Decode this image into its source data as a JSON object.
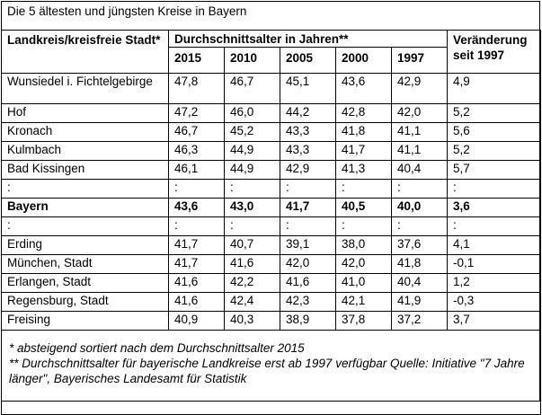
{
  "title": "Die 5 ältesten und jüngsten Kreise in Bayern",
  "header": {
    "landkreis": "Landkreis/kreisfreie Stadt*",
    "group": "Durchschnittsalter in Jahren**",
    "years": [
      "2015",
      "2010",
      "2005",
      "2000",
      "1997"
    ],
    "change": "Veränderung seit 1997"
  },
  "rows": [
    {
      "name": "Wunsiedel i. Fichtelgebirge",
      "values": [
        "47,8",
        "46,7",
        "45,1",
        "43,6",
        "42,9"
      ],
      "change": "4,9"
    },
    {
      "name": "Hof",
      "values": [
        "47,2",
        "46,0",
        "44,2",
        "42,8",
        "42,0"
      ],
      "change": "5,2"
    },
    {
      "name": "Kronach",
      "values": [
        "46,7",
        "45,2",
        "43,3",
        "41,8",
        "41,1"
      ],
      "change": "5,6"
    },
    {
      "name": "Kulmbach",
      "values": [
        "46,3",
        "44,9",
        "43,3",
        "41,7",
        "41,1"
      ],
      "change": "5,2"
    },
    {
      "name": "Bad Kissingen",
      "values": [
        "46,1",
        "44,9",
        "42,9",
        "41,3",
        "40,4"
      ],
      "change": "5,7"
    },
    {
      "name": ":",
      "values": [
        ":",
        ":",
        ":",
        ":",
        ":"
      ],
      "change": ":"
    },
    {
      "name": "Bayern",
      "values": [
        "43,6",
        "43,0",
        "41,7",
        "40,5",
        "40,0"
      ],
      "change": "3,6"
    },
    {
      "name": ":",
      "values": [
        ":",
        ":",
        ":",
        ":",
        ":"
      ],
      "change": ":"
    },
    {
      "name": "Erding",
      "values": [
        "41,7",
        "40,7",
        "39,1",
        "38,0",
        "37,6"
      ],
      "change": "4,1"
    },
    {
      "name": "München, Stadt",
      "values": [
        "41,7",
        "41,6",
        "42,0",
        "42,0",
        "41,8"
      ],
      "change": "-0,1"
    },
    {
      "name": "Erlangen, Stadt",
      "values": [
        "41,6",
        "42,2",
        "41,6",
        "41,0",
        "40,4"
      ],
      "change": "1,2"
    },
    {
      "name": "Regensburg, Stadt",
      "values": [
        "41,6",
        "42,4",
        "42,3",
        "42,1",
        "41,9"
      ],
      "change": "-0,3"
    },
    {
      "name": "Freising",
      "values": [
        "40,9",
        "40,3",
        "38,9",
        "37,8",
        "37,2"
      ],
      "change": "3,7"
    }
  ],
  "footnotes": [
    "* absteigend sortiert nach dem Durchschnittsalter 2015",
    "** Durchschnittsalter für bayerische Landkreise erst ab 1997 verfügbar Quelle: Initiative \"7 Jahre länger\", Bayerisches Landesamt für Statistik"
  ]
}
